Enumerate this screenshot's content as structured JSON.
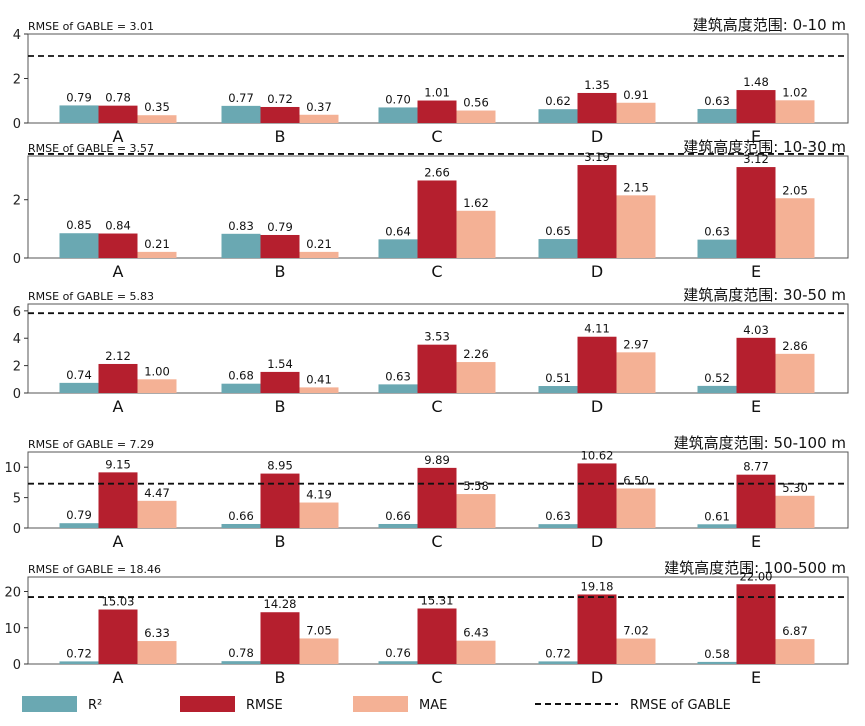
{
  "chart_data": {
    "type": "bar",
    "categories": [
      "A",
      "B",
      "C",
      "D",
      "E"
    ],
    "series_names": [
      "R²",
      "RMSE",
      "MAE"
    ],
    "colors": {
      "r2": "#6aa8b2",
      "rmse": "#b51f2e",
      "mae": "#f4b195",
      "ref": "#111111",
      "frame": "#555555"
    },
    "legend": {
      "r2": "R²",
      "rmse": "RMSE",
      "mae": "MAE",
      "gable": "RMSE of GABLE"
    },
    "panels": [
      {
        "title": "建筑高度范围: 0-10 m",
        "ref_label": "RMSE of GABLE = 3.01",
        "gable_rmse": 3.01,
        "ylim": [
          0,
          4
        ],
        "yticks": [
          0,
          2,
          4
        ],
        "r2": [
          0.79,
          0.77,
          0.7,
          0.62,
          0.63
        ],
        "rmse": [
          0.78,
          0.72,
          1.01,
          1.35,
          1.48
        ],
        "mae": [
          0.35,
          0.37,
          0.56,
          0.91,
          1.02
        ],
        "r2_labels": [
          "0.79",
          "0.77",
          "0.70",
          "0.62",
          "0.63"
        ],
        "rmse_labels": [
          "0.78",
          "0.72",
          "1.01",
          "1.35",
          "1.48"
        ],
        "mae_labels": [
          "0.35",
          "0.37",
          "0.56",
          "0.91",
          "1.02"
        ]
      },
      {
        "title": "建筑高度范围: 10-30 m",
        "ref_label": "RMSE of GABLE = 3.57",
        "gable_rmse": 3.57,
        "ylim": [
          0,
          3.5
        ],
        "yticks": [
          0,
          2
        ],
        "r2": [
          0.85,
          0.83,
          0.64,
          0.65,
          0.63
        ],
        "rmse": [
          0.84,
          0.79,
          2.66,
          3.19,
          3.12
        ],
        "mae": [
          0.21,
          0.21,
          1.62,
          2.15,
          2.05
        ],
        "r2_labels": [
          "0.85",
          "0.83",
          "0.64",
          "0.65",
          "0.63"
        ],
        "rmse_labels": [
          "0.84",
          "0.79",
          "2.66",
          "3.19",
          "3.12"
        ],
        "mae_labels": [
          "0.21",
          "0.21",
          "1.62",
          "2.15",
          "2.05"
        ]
      },
      {
        "title": "建筑高度范围: 30-50 m",
        "ref_label": "RMSE of GABLE = 5.83",
        "gable_rmse": 5.83,
        "ylim": [
          0,
          6.5
        ],
        "yticks": [
          0,
          2,
          4,
          6
        ],
        "r2": [
          0.74,
          0.68,
          0.63,
          0.51,
          0.52
        ],
        "rmse": [
          2.12,
          1.54,
          3.53,
          4.11,
          4.03
        ],
        "mae": [
          1.0,
          0.41,
          2.26,
          2.97,
          2.86
        ],
        "r2_labels": [
          "0.74",
          "0.68",
          "0.63",
          "0.51",
          "0.52"
        ],
        "rmse_labels": [
          "2.12",
          "1.54",
          "3.53",
          "4.11",
          "4.03"
        ],
        "mae_labels": [
          "1.00",
          "0.41",
          "2.26",
          "2.97",
          "2.86"
        ]
      },
      {
        "title": "建筑高度范围: 50-100 m",
        "ref_label": "RMSE of GABLE = 7.29",
        "gable_rmse": 7.29,
        "ylim": [
          0,
          12.5
        ],
        "yticks": [
          0,
          5,
          10
        ],
        "r2": [
          0.79,
          0.66,
          0.66,
          0.63,
          0.61
        ],
        "rmse": [
          9.15,
          8.95,
          9.89,
          10.62,
          8.77
        ],
        "mae": [
          4.47,
          4.19,
          5.58,
          6.5,
          5.3
        ],
        "r2_labels": [
          "0.79",
          "0.66",
          "0.66",
          "0.63",
          "0.61"
        ],
        "rmse_labels": [
          "9.15",
          "8.95",
          "9.89",
          "10.62",
          "8.77"
        ],
        "mae_labels": [
          "4.47",
          "4.19",
          "5.58",
          "6.50",
          "5.30"
        ]
      },
      {
        "title": "建筑高度范围: 100-500 m",
        "ref_label": "RMSE of GABLE = 18.46",
        "gable_rmse": 18.46,
        "ylim": [
          0,
          24
        ],
        "yticks": [
          0,
          10,
          20
        ],
        "r2": [
          0.72,
          0.78,
          0.76,
          0.72,
          0.58
        ],
        "rmse": [
          15.03,
          14.28,
          15.31,
          19.18,
          22.0
        ],
        "mae": [
          6.33,
          7.05,
          6.43,
          7.02,
          6.87
        ],
        "r2_labels": [
          "0.72",
          "0.78",
          "0.76",
          "0.72",
          "0.58"
        ],
        "rmse_labels": [
          "15.03",
          "14.28",
          "15.31",
          "19.18",
          "22.00"
        ],
        "mae_labels": [
          "6.33",
          "7.05",
          "6.43",
          "7.02",
          "6.87"
        ]
      }
    ]
  }
}
